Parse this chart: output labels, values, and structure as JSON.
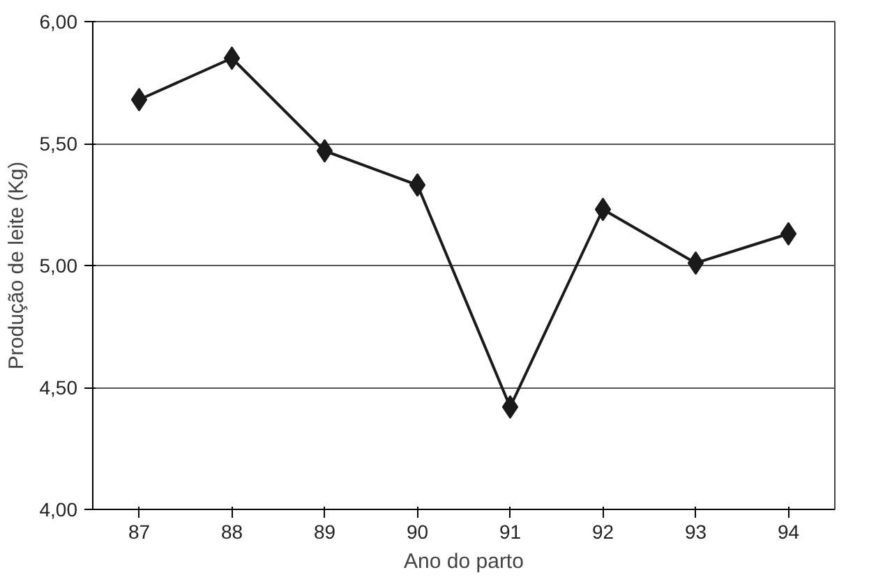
{
  "chart_data": {
    "type": "line",
    "xlabel": "Ano do parto",
    "ylabel": "Produção de leite (Kg)",
    "categories": [
      "87",
      "88",
      "89",
      "90",
      "91",
      "92",
      "93",
      "94"
    ],
    "series": [
      {
        "color": "#1a1a1a",
        "values": [
          5.68,
          5.85,
          5.47,
          5.33,
          4.42,
          5.23,
          5.01,
          5.13
        ]
      }
    ],
    "ylim": [
      4,
      6
    ],
    "yticks": [
      {
        "value": 4,
        "label": "4,00"
      },
      {
        "value": 4.5,
        "label": "4,50"
      },
      {
        "value": 5,
        "label": "5,00"
      },
      {
        "value": 5.5,
        "label": "5,50"
      },
      {
        "value": 6,
        "label": "6,00"
      }
    ],
    "grid": "y",
    "marker": "diamond",
    "line_style": "solid"
  }
}
